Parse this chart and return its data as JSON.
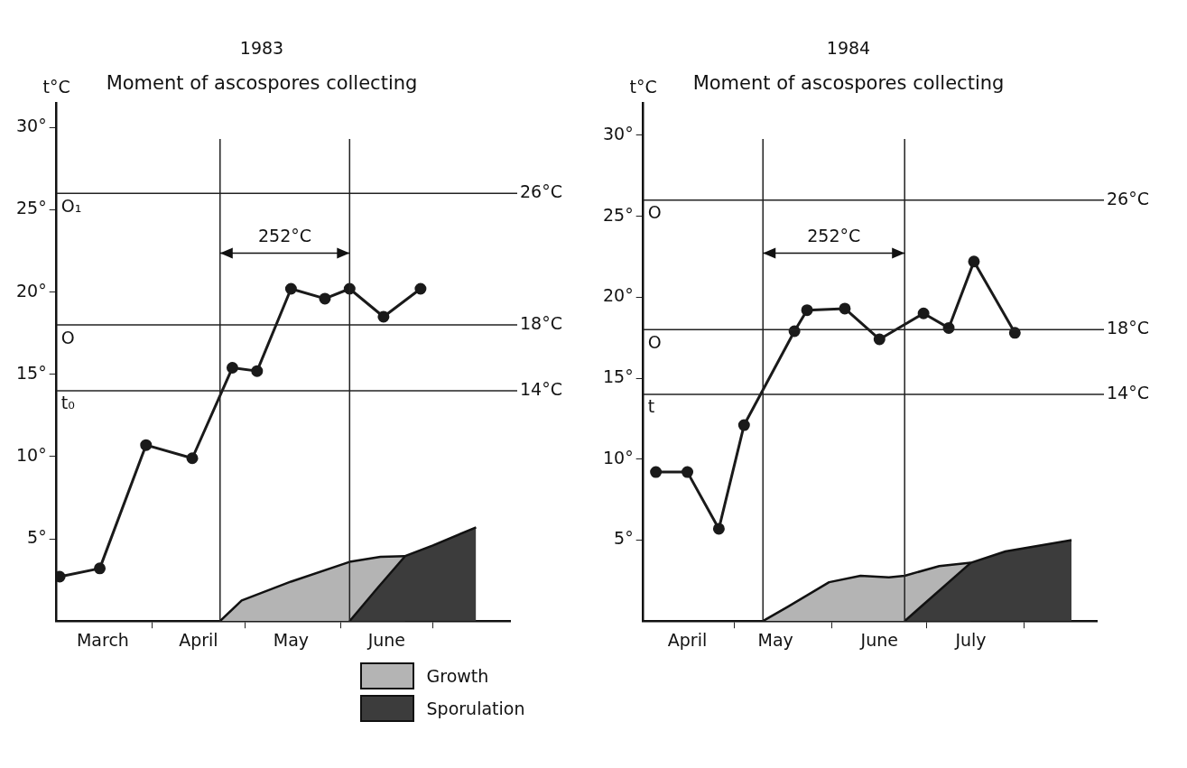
{
  "chart_data": [
    {
      "type": "line",
      "title": "1983",
      "subtitle": "Moment of ascospores collecting",
      "ylabel": "t°C",
      "legend": "bottom",
      "xlim": [
        "--03-01",
        "--07-26"
      ],
      "xticks": [
        {
          "value": "--03-16",
          "label": "March"
        },
        {
          "value": "--04-01",
          "label": null
        },
        {
          "value": "--04-16",
          "label": "April"
        },
        {
          "value": "--05-01",
          "label": null
        },
        {
          "value": "--05-16",
          "label": "May"
        },
        {
          "value": "--06-01",
          "label": null
        },
        {
          "value": "--06-16",
          "label": "June"
        },
        {
          "value": "--07-01",
          "label": null
        }
      ],
      "ylim": [
        0,
        31.5
      ],
      "yticks": [
        {
          "value": 5,
          "label": "5°"
        },
        {
          "value": 10,
          "label": "10°"
        },
        {
          "value": 15,
          "label": "15°"
        },
        {
          "value": 20,
          "label": "20°"
        },
        {
          "value": 25,
          "label": "25°"
        },
        {
          "value": 30,
          "label": "30°"
        }
      ],
      "ref_lines": [
        {
          "axis": "y",
          "value": 26,
          "label": "26°C"
        },
        {
          "axis": "y",
          "value": 18,
          "label": "18°C"
        },
        {
          "axis": "y",
          "value": 14,
          "label": "14°C"
        },
        {
          "axis": "x",
          "value": "--04-23",
          "label": null
        },
        {
          "axis": "x",
          "value": "--06-04",
          "label": null
        }
      ],
      "annotations": [
        "O₁",
        "O",
        "t₀",
        "252°C"
      ],
      "series": [
        {
          "type": "line",
          "marker": "circle",
          "color": "#1a1a1a",
          "x": [
            "--03-02",
            "--03-15",
            "--03-30",
            "--04-14",
            "--04-27",
            "--05-05",
            "--05-16",
            "--05-27",
            "--06-04",
            "--06-15",
            "--06-27"
          ],
          "values": [
            2.7,
            3.2,
            10.7,
            9.9,
            15.4,
            15.2,
            20.2,
            19.6,
            20.2,
            18.5,
            20.2
          ]
        },
        {
          "type": "area",
          "name": "Growth",
          "color": "#b4b4b4",
          "x": [
            "--04-23",
            "--04-30",
            "--05-16",
            "--06-04",
            "--06-14",
            "--06-22"
          ],
          "values": [
            0,
            1.25,
            2.4,
            3.6,
            3.9,
            3.95
          ]
        },
        {
          "type": "area",
          "name": "Sporulation",
          "color": "#3c3c3c",
          "x": [
            "--06-04",
            "--06-13",
            "--06-22",
            "--07-01",
            "--07-15"
          ],
          "values": [
            0,
            2,
            3.95,
            4.6,
            5.7
          ]
        }
      ]
    },
    {
      "type": "line",
      "title": "1984",
      "subtitle": "Moment of ascospores collecting",
      "ylabel": "t°C",
      "xlim": [
        "--04-02",
        "--08-24"
      ],
      "xticks": [
        {
          "value": "--04-16",
          "label": "April"
        },
        {
          "value": "--05-01",
          "label": null
        },
        {
          "value": "--05-14",
          "label": "May"
        },
        {
          "value": "--06-01",
          "label": null
        },
        {
          "value": "--06-16",
          "label": "June"
        },
        {
          "value": "--07-01",
          "label": null
        },
        {
          "value": "--07-15",
          "label": "July"
        },
        {
          "value": "--08-01",
          "label": null
        }
      ],
      "ylim": [
        0,
        32
      ],
      "yticks": [
        {
          "value": 5,
          "label": "5°"
        },
        {
          "value": 10,
          "label": "10°"
        },
        {
          "value": 15,
          "label": "15°"
        },
        {
          "value": 20,
          "label": "20°"
        },
        {
          "value": 25,
          "label": "25°"
        },
        {
          "value": 30,
          "label": "30°"
        }
      ],
      "ref_lines": [
        {
          "axis": "y",
          "value": 26,
          "label": "26°C"
        },
        {
          "axis": "y",
          "value": 18,
          "label": "18°C"
        },
        {
          "axis": "y",
          "value": 14,
          "label": "14°C"
        },
        {
          "axis": "x",
          "value": "--05-10",
          "label": null
        },
        {
          "axis": "x",
          "value": "--06-24",
          "label": null
        }
      ],
      "annotations": [
        "O",
        "O",
        "t",
        "252°C"
      ],
      "series": [
        {
          "type": "line",
          "marker": "circle",
          "color": "#1a1a1a",
          "x": [
            "--04-06",
            "--04-16",
            "--04-26",
            "--05-04",
            "--05-20",
            "--05-24",
            "--06-05",
            "--06-16",
            "--06-30",
            "--07-08",
            "--07-16",
            "--07-29"
          ],
          "values": [
            9.2,
            9.2,
            5.7,
            12.1,
            17.9,
            19.2,
            19.3,
            17.4,
            19.0,
            18.1,
            22.2,
            17.8
          ]
        },
        {
          "type": "area",
          "color": "#b4b4b4",
          "x": [
            "--05-10",
            "--05-18",
            "--05-31",
            "--06-10",
            "--06-19",
            "--06-24",
            "--07-05",
            "--07-15"
          ],
          "values": [
            0,
            0.9,
            2.4,
            2.8,
            2.7,
            2.8,
            3.4,
            3.6
          ]
        },
        {
          "type": "area",
          "color": "#3c3c3c",
          "x": [
            "--06-24",
            "--07-15",
            "--07-26",
            "--08-16"
          ],
          "values": [
            0,
            3.6,
            4.3,
            5.0
          ]
        }
      ]
    }
  ]
}
